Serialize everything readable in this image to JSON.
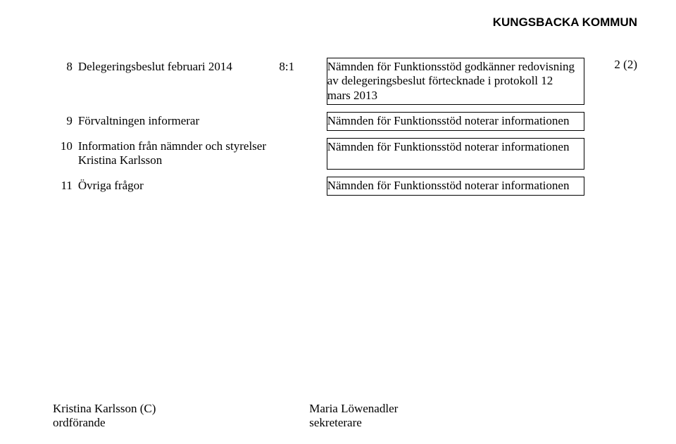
{
  "header": {
    "org": "KUNGSBACKA KOMMUN"
  },
  "page_count": "2 (2)",
  "rows": [
    {
      "num": "8",
      "left": "Delegeringsbeslut februari 2014",
      "mid": "8:1",
      "desc": "Nämnden för Funktionsstöd godkänner redovisning av delegeringsbeslut förtecknade i protokoll 12 mars 2013"
    },
    {
      "num": "9",
      "left": "Förvaltningen informerar",
      "mid": "",
      "desc": "Nämnden för Funktionsstöd noterar informationen"
    },
    {
      "num": "10",
      "left": "Information från nämnder och styrelser\nKristina Karlsson",
      "mid": "",
      "desc": "Nämnden för Funktionsstöd noterar informationen"
    },
    {
      "num": "11",
      "left": "Övriga frågor",
      "mid": "",
      "desc": "Nämnden för Funktionsstöd noterar informationen"
    }
  ],
  "signatures": {
    "left_name": "Kristina Karlsson (C)",
    "left_role": "ordförande",
    "right_name": "Maria Löwenadler",
    "right_role": "sekreterare"
  }
}
